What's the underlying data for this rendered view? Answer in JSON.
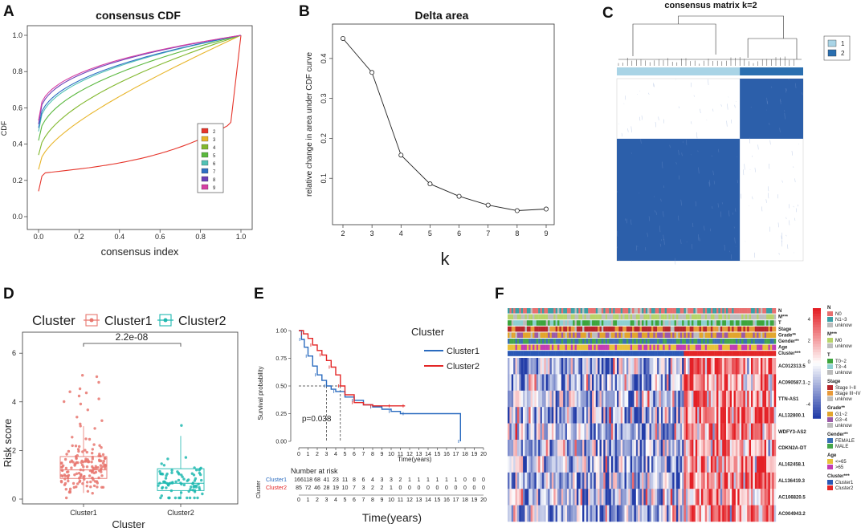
{
  "figure": {
    "labels": [
      "A",
      "B",
      "C",
      "D",
      "E",
      "F"
    ]
  },
  "colors": {
    "cluster1_light": "#a9d4e6",
    "cluster2_dark": "#2a6fb0",
    "matrix_blue": "#2c5faa",
    "box_red": "#e8766e",
    "box_teal": "#1fb8b0",
    "km_blue": "#2a6bbf",
    "km_red": "#e32626"
  },
  "chart_data": [
    {
      "id": "A",
      "type": "line",
      "title": "consensus CDF",
      "xlabel": "consensus index",
      "ylabel": "CDF",
      "xlim": [
        0,
        1
      ],
      "ylim": [
        0,
        1
      ],
      "x_ticks": [
        "0.0",
        "0.2",
        "0.4",
        "0.6",
        "0.8",
        "1.0"
      ],
      "y_ticks": [
        "0.0",
        "0.2",
        "0.4",
        "0.6",
        "0.8",
        "1.0"
      ],
      "legend_position": "bottom-right",
      "series": [
        {
          "name": "2",
          "color": "#e6352b",
          "start": 0.14,
          "shape": "flat"
        },
        {
          "name": "3",
          "color": "#e8b52a",
          "start": 0.26,
          "shape": "linear"
        },
        {
          "name": "4",
          "color": "#82b82e",
          "start": 0.34,
          "shape": "concave1"
        },
        {
          "name": "5",
          "color": "#5ab83e",
          "start": 0.42,
          "shape": "concave2"
        },
        {
          "name": "6",
          "color": "#52c2b5",
          "start": 0.47,
          "shape": "concave3"
        },
        {
          "name": "7",
          "color": "#2e6fc4",
          "start": 0.49,
          "shape": "concave3"
        },
        {
          "name": "8",
          "color": "#6d3fb8",
          "start": 0.51,
          "shape": "concave4"
        },
        {
          "name": "9",
          "color": "#d63fa3",
          "start": 0.53,
          "shape": "concave4"
        }
      ]
    },
    {
      "id": "B",
      "type": "line",
      "title": "Delta area",
      "xlabel": "k",
      "ylabel": "relative change in area under CDF curve",
      "x": [
        2,
        3,
        4,
        5,
        6,
        7,
        8,
        9
      ],
      "values": [
        0.45,
        0.365,
        0.158,
        0.086,
        0.055,
        0.033,
        0.019,
        0.023
      ],
      "ylim": [
        0.0,
        0.47
      ],
      "y_ticks": [
        "0.1",
        "0.2",
        "0.3",
        "0.4"
      ],
      "x_ticks": [
        "2",
        "3",
        "4",
        "5",
        "6",
        "7",
        "8",
        "9"
      ]
    },
    {
      "id": "C",
      "type": "heatmap",
      "title": "consensus matrix k=2",
      "legend": [
        "1",
        "2"
      ],
      "cluster_fraction": 0.66
    },
    {
      "id": "D",
      "type": "box",
      "legend_title": "Cluster",
      "legend": [
        "Cluster1",
        "Cluster2"
      ],
      "categories": [
        "Cluster1",
        "Cluster2"
      ],
      "xlabel": "Cluster",
      "ylabel": "Risk score",
      "ylim": [
        0,
        6.6
      ],
      "y_ticks": [
        "0",
        "2",
        "4",
        "6"
      ],
      "p_value": "2.2e-08",
      "boxes": [
        {
          "name": "Cluster1",
          "q1": 0.85,
          "median": 1.2,
          "q3": 1.75,
          "lo": 0.25,
          "hi": 3.0
        },
        {
          "name": "Cluster2",
          "q1": 0.35,
          "median": 0.65,
          "q3": 1.25,
          "lo": 0.0,
          "hi": 2.6
        }
      ]
    },
    {
      "id": "E",
      "type": "line",
      "legend_title": "Cluster",
      "legend": [
        "Cluster1",
        "Cluster2"
      ],
      "xlabel": "Time(years)",
      "ylabel": "Survival probability",
      "pvalue_text": "p=0.038",
      "xlim": [
        0,
        20
      ],
      "ylim": [
        0,
        1
      ],
      "y_ticks": [
        "0.00",
        "0.25",
        "0.50",
        "0.75",
        "1.00"
      ],
      "x_ticks": [
        "0",
        "1",
        "2",
        "3",
        "4",
        "5",
        "6",
        "7",
        "8",
        "9",
        "10",
        "11",
        "12",
        "13",
        "14",
        "15",
        "16",
        "17",
        "18",
        "19",
        "20"
      ],
      "series": [
        {
          "name": "Cluster1",
          "times": [
            0,
            0.3,
            0.6,
            1,
            1.5,
            2,
            2.5,
            3,
            3.5,
            4,
            5,
            6,
            7,
            8,
            9,
            10,
            11,
            11.5,
            12,
            17.5
          ],
          "surv": [
            1,
            0.92,
            0.85,
            0.77,
            0.68,
            0.6,
            0.55,
            0.5,
            0.47,
            0.45,
            0.4,
            0.37,
            0.33,
            0.31,
            0.29,
            0.27,
            0.25,
            0.25,
            0.25,
            0
          ]
        },
        {
          "name": "Cluster2",
          "times": [
            0,
            0.5,
            1,
            1.5,
            2,
            2.5,
            3,
            3.5,
            4,
            4.5,
            5,
            6,
            7,
            8,
            9,
            10,
            11,
            11.5
          ],
          "surv": [
            1,
            0.97,
            0.93,
            0.87,
            0.82,
            0.78,
            0.73,
            0.67,
            0.6,
            0.5,
            0.42,
            0.35,
            0.33,
            0.32,
            0.32,
            0.32,
            0.32,
            0.32
          ]
        }
      ],
      "risk_table": {
        "title": "Number at risk",
        "ylabel": "Cluster",
        "xlabel": "Time(years)",
        "rows": [
          {
            "name": "Cluster1",
            "values": [
              "166",
              "118",
              "68",
              "41",
              "23",
              "11",
              "8",
              "6",
              "4",
              "3",
              "3",
              "2",
              "1",
              "1",
              "1",
              "1",
              "1",
              "1",
              "0",
              "0",
              "0"
            ]
          },
          {
            "name": "Cluster2",
            "values": [
              "85",
              "72",
              "46",
              "28",
              "19",
              "10",
              "7",
              "3",
              "2",
              "2",
              "1",
              "0",
              "0",
              "0",
              "0",
              "0",
              "0",
              "0",
              "0",
              "0",
              "0"
            ]
          }
        ]
      }
    },
    {
      "id": "F",
      "type": "heatmap",
      "annotation_rows": [
        "N",
        "M***",
        "T",
        "Stage",
        "Grade**",
        "Gender**",
        "Age",
        "Cluster***"
      ],
      "genes": [
        "AC012313.5",
        "AC090587.1",
        "TTN-AS1",
        "AL132800.1",
        "WDFY3-AS2",
        "CDKN2A-DT",
        "AL162458.1",
        "AL136419.3",
        "AC106820.5",
        "AC004943.2"
      ],
      "colorbar_ticks": [
        "4",
        "2",
        "0",
        "-2",
        "-4"
      ],
      "legend_groups": [
        {
          "title": "N",
          "items": [
            {
              "label": "N0",
              "color": "#e86f6f"
            },
            {
              "label": "N1~3",
              "color": "#3aa0a6"
            },
            {
              "label": "unknow",
              "color": "#bdbdbd"
            }
          ]
        },
        {
          "title": "M***",
          "items": [
            {
              "label": "M0",
              "color": "#b7d36a"
            },
            {
              "label": "unknow",
              "color": "#bdbdbd"
            }
          ]
        },
        {
          "title": "T",
          "items": [
            {
              "label": "T0~2",
              "color": "#3da53d"
            },
            {
              "label": "T3~4",
              "color": "#8ecfd0"
            },
            {
              "label": "unknow",
              "color": "#bdbdbd"
            }
          ]
        },
        {
          "title": "Stage",
          "items": [
            {
              "label": "Stage I~II",
              "color": "#b8262b"
            },
            {
              "label": "Stage III~IV",
              "color": "#e89a3b"
            },
            {
              "label": "unknow",
              "color": "#bdbdbd"
            }
          ]
        },
        {
          "title": "Grade**",
          "items": [
            {
              "label": "G1~2",
              "color": "#e2a52d"
            },
            {
              "label": "G3~4",
              "color": "#9b5aa8"
            },
            {
              "label": "unknow",
              "color": "#bdbdbd"
            }
          ]
        },
        {
          "title": "Gender**",
          "items": [
            {
              "label": "FEMALE",
              "color": "#3a6fb5"
            },
            {
              "label": "MALE",
              "color": "#45a64a"
            }
          ]
        },
        {
          "title": "Age",
          "items": [
            {
              "label": "<=65",
              "color": "#e8c23a"
            },
            {
              "label": ">65",
              "color": "#c23db3"
            }
          ]
        },
        {
          "title": "Cluster***",
          "items": [
            {
              "label": "Cluster1",
              "color": "#2a58b5"
            },
            {
              "label": "Cluster2",
              "color": "#e32626"
            }
          ]
        }
      ]
    }
  ]
}
